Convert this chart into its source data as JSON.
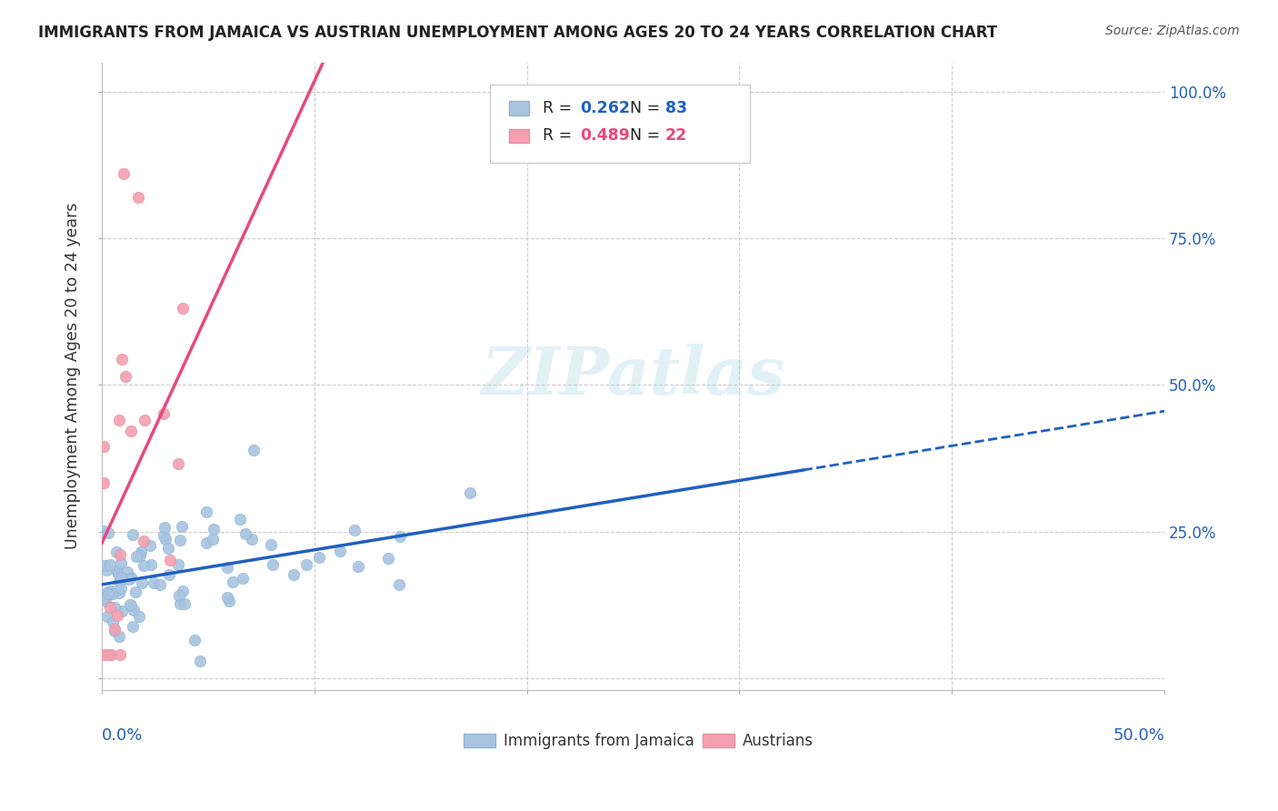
{
  "title": "IMMIGRANTS FROM JAMAICA VS AUSTRIAN UNEMPLOYMENT AMONG AGES 20 TO 24 YEARS CORRELATION CHART",
  "source": "Source: ZipAtlas.com",
  "ylabel": "Unemployment Among Ages 20 to 24 years",
  "xlim": [
    0.0,
    0.5
  ],
  "ylim": [
    -0.02,
    1.05
  ],
  "blue_R": 0.262,
  "blue_N": 83,
  "pink_R": 0.489,
  "pink_N": 22,
  "blue_color": "#a8c4e0",
  "pink_color": "#f4a0b0",
  "blue_line_color": "#2060c0",
  "pink_line_color": "#e84880",
  "watermark": "ZIPatlas"
}
